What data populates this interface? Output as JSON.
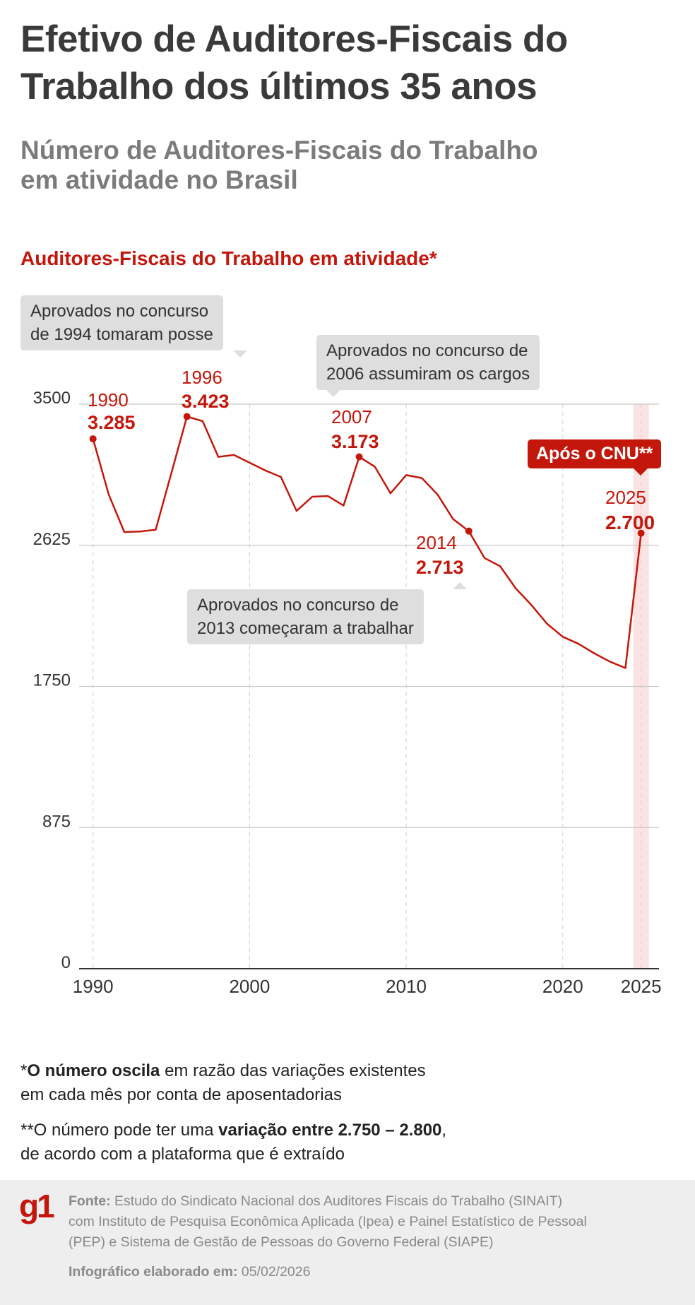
{
  "header": {
    "title_line1": "Efetivo de Auditores-Fiscais do",
    "title_line2": "Trabalho dos últimos 35 anos",
    "subtitle_line1": "Número de Auditores-Fiscais do Trabalho",
    "subtitle_line2": "em atividade no Brasil"
  },
  "chart_data": {
    "type": "line",
    "title": "Auditores-Fiscais do Trabalho em atividade*",
    "xlabel": "",
    "ylabel": "",
    "xlim": [
      1990,
      2025
    ],
    "ylim": [
      0,
      3500
    ],
    "x_ticks": [
      "1990",
      "2000",
      "2010",
      "2020",
      "2025"
    ],
    "y_ticks": [
      "0",
      "875",
      "1750",
      "2625",
      "3500"
    ],
    "grid": "horizontal solid, vertical dashed",
    "color": "#c4170c",
    "highlight_color": "#fbe3e3",
    "x": [
      1990,
      1991,
      1992,
      1993,
      1994,
      1995,
      1996,
      1997,
      1998,
      1999,
      2000,
      2001,
      2002,
      2003,
      2004,
      2005,
      2006,
      2007,
      2008,
      2009,
      2010,
      2011,
      2012,
      2013,
      2014,
      2015,
      2016,
      2017,
      2018,
      2019,
      2020,
      2021,
      2022,
      2023,
      2024,
      2025
    ],
    "y": [
      3285,
      2940,
      2707,
      2710,
      2721,
      3072,
      3423,
      3395,
      3173,
      3185,
      3137,
      3089,
      3049,
      2838,
      2926,
      2930,
      2871,
      3173,
      3112,
      2947,
      3060,
      3042,
      2940,
      2787,
      2713,
      2546,
      2495,
      2357,
      2254,
      2138,
      2058,
      2014,
      1956,
      1904,
      1864,
      2700
    ],
    "labeled_points": [
      {
        "year": "1990",
        "value": "3.285"
      },
      {
        "year": "1996",
        "value": "3.423"
      },
      {
        "year": "2007",
        "value": "3.173"
      },
      {
        "year": "2014",
        "value": "2.713"
      },
      {
        "year": "2025",
        "value": "2.700"
      }
    ],
    "annotations": {
      "a1994_line1": "Aprovados no concurso",
      "a1994_line2": "de 1994 tomaram posse",
      "a2006_line1": "Aprovados no concurso de",
      "a2006_line2": "2006 assumiram os cargos",
      "a2013_line1": "Aprovados no concurso de",
      "a2013_line2": "2013 começaram a trabalhar",
      "cnu": "Após o CNU**"
    }
  },
  "notes": {
    "n1_prefix": "*",
    "n1_bold": "O número oscila",
    "n1_rest": " em razão das variações existentes",
    "n1_line2": "em cada mês por conta de aposentadorias",
    "n2_prefix": "**O número pode ter uma ",
    "n2_bold": "variação entre 2.750 – 2.800",
    "n2_rest": ",",
    "n2_line2": "de acordo com a plataforma que é extraído"
  },
  "footer": {
    "logo": "g1",
    "source_label": "Fonte:",
    "source_line1": " Estudo do Sindicato Nacional dos Auditores Fiscais do Trabalho (SINAIT)",
    "source_line2": "com Instituto de Pesquisa Econômica Aplicada (Ipea) e Painel Estatístico de Pessoal",
    "source_line3": "(PEP) e Sistema de Gestão de Pessoas do Governo Federal (SIAPE)",
    "date_label": "Infográfico elaborado em:",
    "date": " 05/02/2026"
  }
}
